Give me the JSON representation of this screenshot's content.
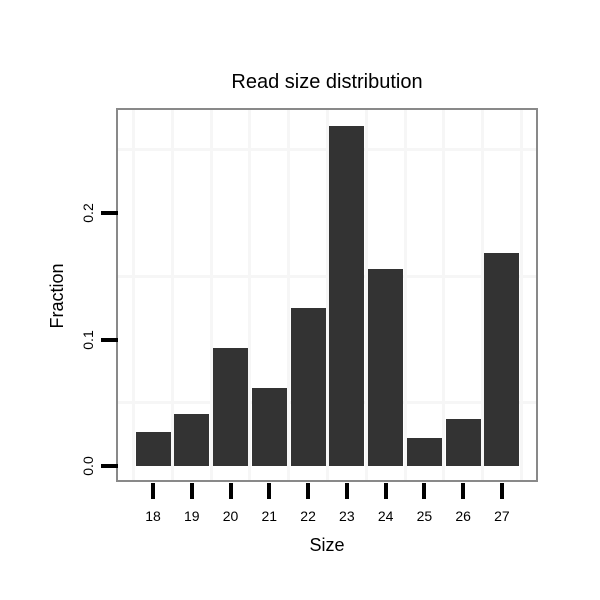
{
  "chart_data": {
    "type": "bar",
    "title": "Read size distribution",
    "xlabel": "Size",
    "ylabel": "Fraction",
    "categories": [
      "18",
      "19",
      "20",
      "21",
      "22",
      "23",
      "24",
      "25",
      "26",
      "27"
    ],
    "values": [
      0.027,
      0.041,
      0.093,
      0.062,
      0.125,
      0.269,
      0.156,
      0.022,
      0.037,
      0.168
    ],
    "y_ticks": [
      0.0,
      0.1,
      0.2
    ],
    "y_tick_labels": [
      "0.0",
      "0.1",
      "0.2"
    ],
    "minor_gridlines_y": [
      0.05,
      0.15,
      0.25
    ],
    "ylim": [
      -0.012,
      0.281
    ],
    "grid": "minor horizontal lines and category-boundary vertical lines, very light gray",
    "legend_position": "none",
    "colors": {
      "bar_fill": "#333333",
      "panel_border": "#898989",
      "gridline": "#f6f6f6",
      "tick": "#000000",
      "text": "#000000"
    }
  }
}
